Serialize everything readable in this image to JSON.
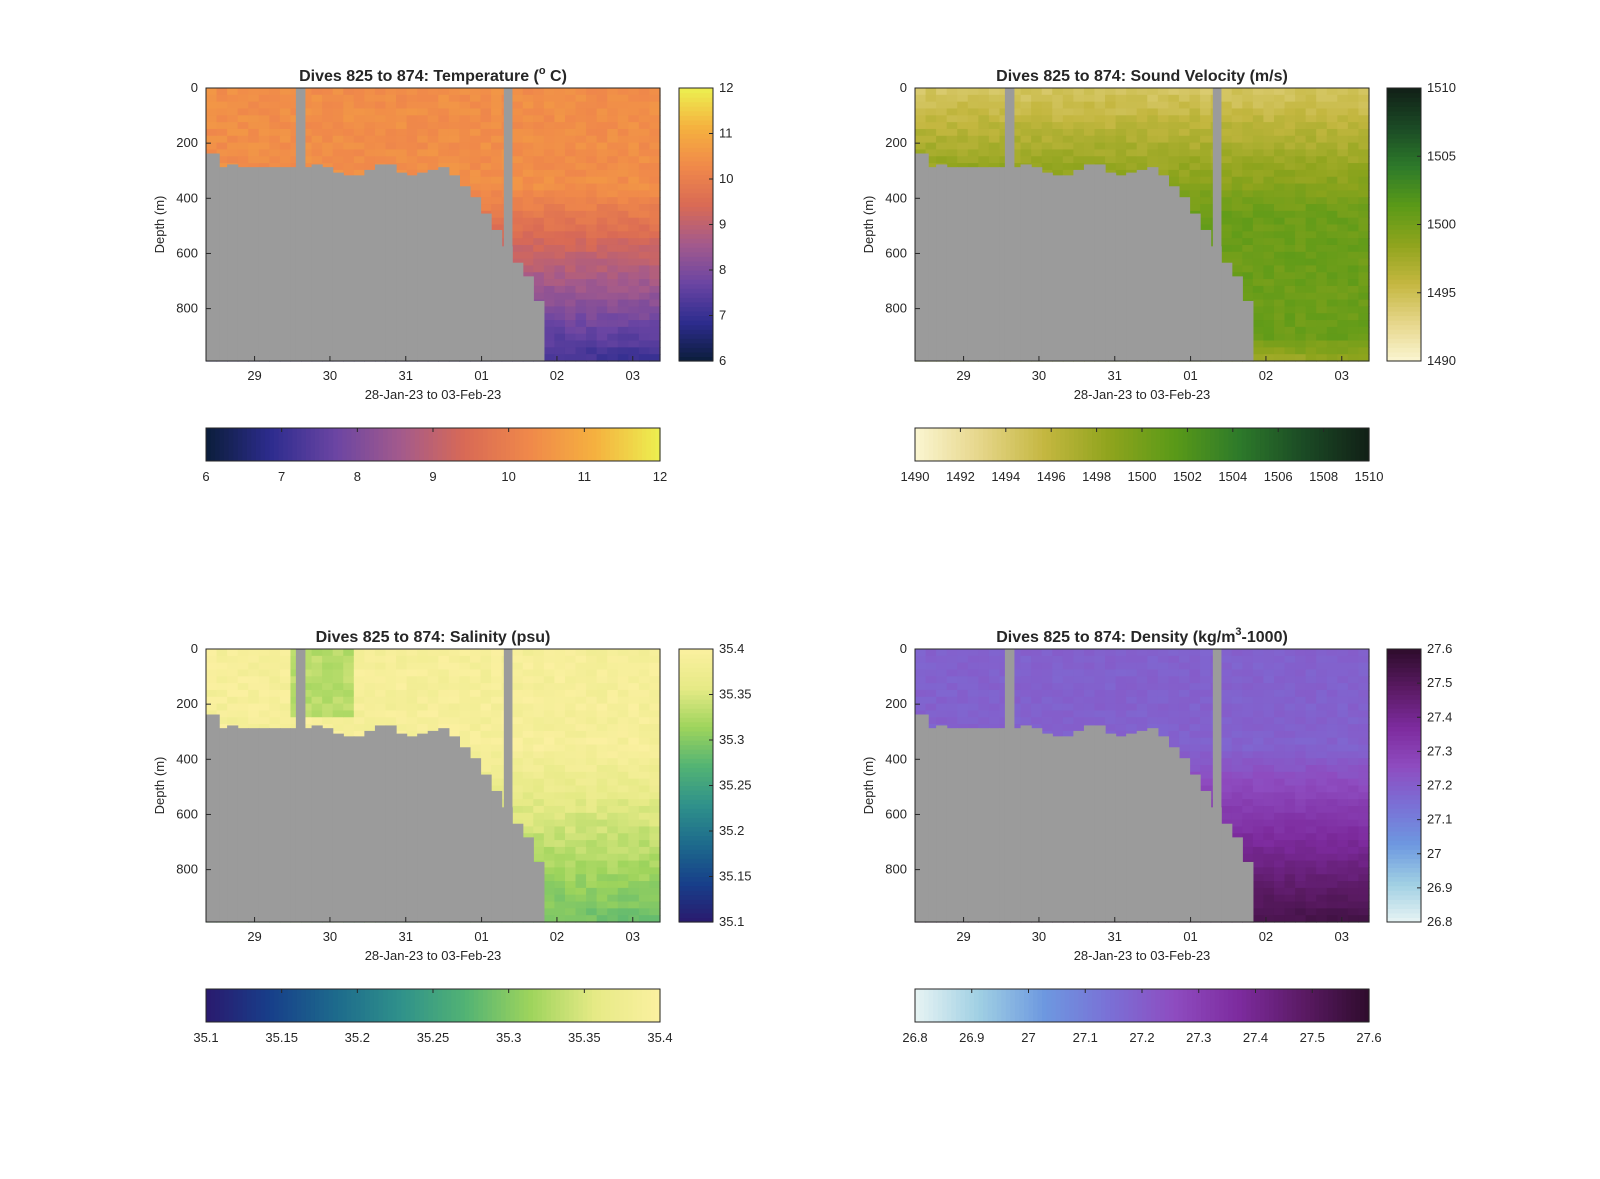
{
  "chart_data": [
    {
      "type": "heatmap",
      "title": "Dives 825 to 874: Temperature (° C)",
      "title_main": "Dives 825 to 874: Temperature (",
      "title_sup": "o",
      "title_tail": " C)",
      "xlabel": "28-Jan-23 to 03-Feb-23",
      "ylabel": "Depth (m)",
      "x_ticks": [
        "29",
        "30",
        "31",
        "01",
        "02",
        "03"
      ],
      "y_ticks": [
        "0",
        "200",
        "400",
        "600",
        "800"
      ],
      "ylim": [
        0,
        990
      ],
      "colorbar_range": [
        6,
        12
      ],
      "colorbar_ticks": [
        "6",
        "7",
        "8",
        "9",
        "10",
        "11",
        "12"
      ],
      "colormap": [
        "#0b1d3a",
        "#2d2c8e",
        "#6b45a3",
        "#a35a8c",
        "#d96a55",
        "#f0894a",
        "#f5b13f",
        "#ecf050"
      ],
      "surface_value": 10.4,
      "deep_value": 7.0
    },
    {
      "type": "heatmap",
      "title": "Dives 825 to 874: Sound Velocity (m/s)",
      "title_main": "Dives 825 to 874: Sound Velocity (m/s)",
      "title_sup": "",
      "title_tail": "",
      "xlabel": "28-Jan-23 to 03-Feb-23",
      "ylabel": "Depth (m)",
      "x_ticks": [
        "29",
        "30",
        "31",
        "01",
        "02",
        "03"
      ],
      "y_ticks": [
        "0",
        "200",
        "400",
        "600",
        "800"
      ],
      "ylim": [
        0,
        990
      ],
      "colorbar_range": [
        1490,
        1510
      ],
      "colorbar_ticks": [
        "1490",
        "1492",
        "1494",
        "1496",
        "1498",
        "1500",
        "1502",
        "1504",
        "1506",
        "1508",
        "1510"
      ],
      "side_colorbar_ticks": [
        "1490",
        "1495",
        "1500",
        "1505",
        "1510"
      ],
      "colormap": [
        "#fbf6d2",
        "#e6d68a",
        "#c4b740",
        "#8fa41d",
        "#5a9a18",
        "#2d7a2a",
        "#1b4a25",
        "#111f17"
      ],
      "surface_value": 1494.5,
      "deep_value": 1499.5
    },
    {
      "type": "heatmap",
      "title": "Dives 825 to 874: Salinity (psu)",
      "title_main": "Dives 825 to 874: Salinity (psu)",
      "title_sup": "",
      "title_tail": "",
      "xlabel": "28-Jan-23 to 03-Feb-23",
      "ylabel": "Depth (m)",
      "x_ticks": [
        "29",
        "30",
        "31",
        "01",
        "02",
        "03"
      ],
      "y_ticks": [
        "0",
        "200",
        "400",
        "600",
        "800"
      ],
      "ylim": [
        0,
        990
      ],
      "colorbar_range": [
        35.1,
        35.4
      ],
      "colorbar_ticks": [
        "35.1",
        "35.15",
        "35.2",
        "35.25",
        "35.3",
        "35.35",
        "35.4"
      ],
      "colormap": [
        "#2a1a6e",
        "#173f8a",
        "#1d6a8c",
        "#2f918b",
        "#52b374",
        "#9ed45c",
        "#e6ea86",
        "#fbf0a0"
      ],
      "surface_value": 35.39,
      "deep_value": 35.3
    },
    {
      "type": "heatmap",
      "title": "Dives 825 to 874: Density (kg/m³-1000)",
      "title_main": "Dives 825 to 874: Density (kg/m",
      "title_sup": "3",
      "title_tail": "-1000)",
      "xlabel": "28-Jan-23 to 03-Feb-23",
      "ylabel": "Depth (m)",
      "x_ticks": [
        "29",
        "30",
        "31",
        "01",
        "02",
        "03"
      ],
      "y_ticks": [
        "0",
        "200",
        "400",
        "600",
        "800"
      ],
      "ylim": [
        0,
        990
      ],
      "colorbar_range": [
        26.8,
        27.6
      ],
      "colorbar_ticks": [
        "26.8",
        "26.9",
        "27",
        "27.1",
        "27.2",
        "27.3",
        "27.4",
        "27.5",
        "27.6"
      ],
      "colormap": [
        "#e8f4f4",
        "#9fcfe3",
        "#6d98e0",
        "#7a70d6",
        "#8e4cc0",
        "#7d2b9e",
        "#5a1a63",
        "#2e0c2c"
      ],
      "surface_value": 27.19,
      "deep_value": 27.36
    }
  ],
  "colors": {
    "mask": "#9b9b9b",
    "axis": "#262626",
    "background": "#ffffff"
  }
}
